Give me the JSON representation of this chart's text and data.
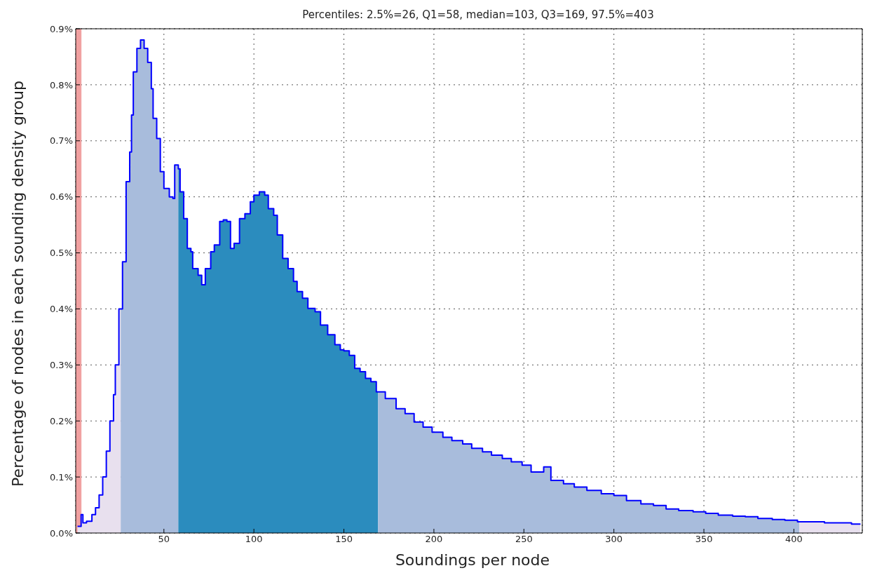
{
  "chart_data": {
    "type": "step",
    "title": "Percentiles: 2.5%=26, Q1=58, median=103, Q3=169, 97.5%=403",
    "xlabel": "Soundings per node",
    "ylabel": "Percentage of nodes in each sounding density group",
    "xlim": [
      1,
      438
    ],
    "xticks": [
      50,
      100,
      150,
      200,
      250,
      300,
      350,
      400
    ],
    "ylim": [
      0,
      0.9
    ],
    "yticks": [
      {
        "value": 0,
        "label": "0.0%"
      },
      {
        "value": 0.1,
        "label": "0.1%"
      },
      {
        "value": 0.2,
        "label": "0.2%"
      },
      {
        "value": 0.3,
        "label": "0.3%"
      },
      {
        "value": 0.4,
        "label": "0.4%"
      },
      {
        "value": 0.5,
        "label": "0.5%"
      },
      {
        "value": 0.6,
        "label": "0.6%"
      },
      {
        "value": 0.7,
        "label": "0.7%"
      },
      {
        "value": 0.8,
        "label": "0.8%"
      },
      {
        "value": 0.9,
        "label": "0.9%"
      }
    ],
    "grid": true,
    "line_style": "solid",
    "marker": "none",
    "bands": [
      {
        "axis": "x",
        "from": 1,
        "to": 4,
        "color": "#f0a0a0"
      }
    ],
    "series": [
      {
        "type": "area",
        "color": "#e8e0ee",
        "x": [
          2,
          4,
          5,
          7,
          10,
          12,
          14,
          16,
          18,
          20,
          22,
          23,
          25,
          26
        ],
        "values": [
          0.012,
          0.033,
          0.018,
          0.021,
          0.033,
          0.045,
          0.068,
          0.1,
          0.146,
          0.2,
          0.247,
          0.3,
          0.4,
          0.4
        ]
      },
      {
        "type": "area",
        "color": "#a8bcdc",
        "x": [
          26,
          27,
          29,
          31,
          32,
          33,
          35,
          37,
          39,
          41,
          43,
          44,
          46,
          48,
          50,
          53,
          55,
          56,
          58
        ],
        "values": [
          0.4,
          0.484,
          0.627,
          0.68,
          0.746,
          0.823,
          0.865,
          0.88,
          0.865,
          0.84,
          0.793,
          0.74,
          0.704,
          0.645,
          0.615,
          0.6,
          0.597,
          0.657,
          0.65
        ]
      },
      {
        "type": "area",
        "color": "#2b8cbe",
        "x": [
          58,
          59,
          61,
          63,
          65,
          66,
          69,
          71,
          73,
          76,
          78,
          81,
          83,
          85,
          87,
          89,
          92,
          95,
          98,
          100,
          103,
          106,
          108,
          111,
          113,
          116,
          119,
          122,
          124,
          127,
          130,
          134,
          137,
          141,
          145,
          148,
          150,
          153,
          156,
          159,
          162,
          165,
          168,
          169
        ],
        "values": [
          0.65,
          0.609,
          0.561,
          0.508,
          0.502,
          0.472,
          0.46,
          0.443,
          0.472,
          0.502,
          0.514,
          0.556,
          0.559,
          0.556,
          0.508,
          0.517,
          0.561,
          0.57,
          0.591,
          0.603,
          0.609,
          0.603,
          0.579,
          0.567,
          0.532,
          0.49,
          0.472,
          0.449,
          0.431,
          0.419,
          0.401,
          0.395,
          0.371,
          0.354,
          0.336,
          0.327,
          0.325,
          0.317,
          0.294,
          0.288,
          0.276,
          0.27,
          0.252,
          0.252
        ]
      },
      {
        "type": "area",
        "color": "#a8bcdc",
        "x": [
          169,
          173,
          179,
          184,
          189,
          194,
          199,
          205,
          210,
          216,
          221,
          227,
          232,
          238,
          243,
          249,
          254,
          261,
          265,
          272,
          278,
          285,
          293,
          300,
          307,
          315,
          322,
          329,
          336,
          344,
          351,
          358,
          366,
          373,
          380,
          388,
          395,
          402,
          403
        ],
        "values": [
          0.252,
          0.24,
          0.222,
          0.213,
          0.198,
          0.189,
          0.18,
          0.171,
          0.165,
          0.159,
          0.151,
          0.145,
          0.139,
          0.133,
          0.127,
          0.121,
          0.109,
          0.118,
          0.094,
          0.088,
          0.082,
          0.076,
          0.07,
          0.067,
          0.058,
          0.052,
          0.049,
          0.043,
          0.04,
          0.038,
          0.035,
          0.032,
          0.03,
          0.029,
          0.026,
          0.024,
          0.023,
          0.02,
          0.02
        ]
      },
      {
        "type": "area",
        "color": "#e8e0ee",
        "x": [
          403,
          410,
          417,
          425,
          432,
          437
        ],
        "values": [
          0.02,
          0.02,
          0.018,
          0.018,
          0.016,
          0.016
        ]
      },
      {
        "color": "#0000ff",
        "x": [
          2,
          4,
          5,
          7,
          10,
          12,
          14,
          16,
          18,
          20,
          22,
          23,
          25,
          26,
          27,
          29,
          31,
          32,
          33,
          35,
          37,
          39,
          41,
          43,
          44,
          46,
          48,
          50,
          53,
          55,
          56,
          58,
          59,
          61,
          63,
          65,
          66,
          69,
          71,
          73,
          76,
          78,
          81,
          83,
          85,
          87,
          89,
          92,
          95,
          98,
          100,
          103,
          106,
          108,
          111,
          113,
          116,
          119,
          122,
          124,
          127,
          130,
          134,
          137,
          141,
          145,
          148,
          150,
          153,
          156,
          159,
          162,
          165,
          168,
          169,
          173,
          179,
          184,
          189,
          194,
          199,
          205,
          210,
          216,
          221,
          227,
          232,
          238,
          243,
          249,
          254,
          261,
          265,
          272,
          278,
          285,
          293,
          300,
          307,
          315,
          322,
          329,
          336,
          344,
          351,
          358,
          366,
          373,
          380,
          388,
          395,
          402,
          403,
          410,
          417,
          425,
          432,
          437
        ],
        "values": [
          0.012,
          0.033,
          0.018,
          0.021,
          0.033,
          0.045,
          0.068,
          0.1,
          0.146,
          0.2,
          0.247,
          0.3,
          0.4,
          0.4,
          0.484,
          0.627,
          0.68,
          0.746,
          0.823,
          0.865,
          0.88,
          0.865,
          0.84,
          0.793,
          0.74,
          0.704,
          0.645,
          0.615,
          0.6,
          0.597,
          0.657,
          0.65,
          0.609,
          0.561,
          0.508,
          0.502,
          0.472,
          0.46,
          0.443,
          0.472,
          0.502,
          0.514,
          0.556,
          0.559,
          0.556,
          0.508,
          0.517,
          0.561,
          0.57,
          0.591,
          0.603,
          0.609,
          0.603,
          0.579,
          0.567,
          0.532,
          0.49,
          0.472,
          0.449,
          0.431,
          0.419,
          0.401,
          0.395,
          0.371,
          0.354,
          0.336,
          0.327,
          0.325,
          0.317,
          0.294,
          0.288,
          0.276,
          0.27,
          0.252,
          0.252,
          0.24,
          0.222,
          0.213,
          0.198,
          0.189,
          0.18,
          0.171,
          0.165,
          0.159,
          0.151,
          0.145,
          0.139,
          0.133,
          0.127,
          0.121,
          0.109,
          0.118,
          0.094,
          0.088,
          0.082,
          0.076,
          0.07,
          0.067,
          0.058,
          0.052,
          0.049,
          0.043,
          0.04,
          0.038,
          0.035,
          0.032,
          0.03,
          0.029,
          0.026,
          0.024,
          0.023,
          0.02,
          0.02,
          0.02,
          0.018,
          0.018,
          0.016,
          0.016
        ]
      }
    ]
  }
}
